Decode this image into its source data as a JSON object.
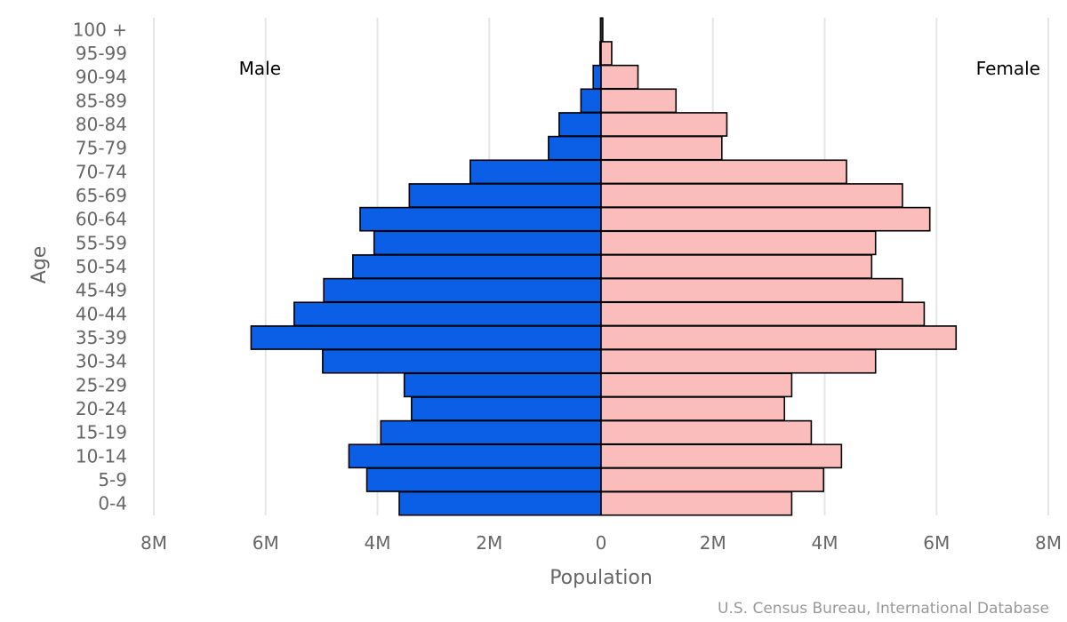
{
  "chart_data": {
    "type": "bar",
    "orientation": "horizontal",
    "layout": "population-pyramid",
    "title": "",
    "xlabel": "Population",
    "ylabel": "Age",
    "male_label": "Male",
    "female_label": "Female",
    "credit": "U.S. Census Bureau, International Database",
    "categories": [
      "0-4",
      "5-9",
      "10-14",
      "15-19",
      "20-24",
      "25-29",
      "30-34",
      "35-39",
      "40-44",
      "45-49",
      "50-54",
      "55-59",
      "60-64",
      "65-69",
      "70-74",
      "75-79",
      "80-84",
      "85-89",
      "90-94",
      "95-99",
      "100 +"
    ],
    "series": [
      {
        "name": "Male",
        "color": "#0b5fe6",
        "values": [
          3.61,
          4.19,
          4.51,
          3.94,
          3.39,
          3.52,
          4.98,
          6.26,
          5.49,
          4.96,
          4.44,
          4.06,
          4.31,
          3.43,
          2.34,
          0.94,
          0.75,
          0.36,
          0.14,
          0.02,
          0.01
        ]
      },
      {
        "name": "Female",
        "color": "#fbbcbc",
        "values": [
          3.41,
          3.98,
          4.3,
          3.76,
          3.28,
          3.41,
          4.91,
          6.35,
          5.78,
          5.39,
          4.84,
          4.91,
          5.88,
          5.39,
          4.39,
          2.16,
          2.25,
          1.34,
          0.66,
          0.19,
          0.03
        ]
      }
    ],
    "xlim": [
      -8,
      8
    ],
    "tick_values": [
      -8,
      -6,
      -4,
      -2,
      0,
      2,
      4,
      6,
      8
    ],
    "tick_labels": [
      "8M",
      "6M",
      "4M",
      "2M",
      "0",
      "2M",
      "4M",
      "6M",
      "8M"
    ],
    "grid": true,
    "bar_outline_color": "#000000"
  }
}
